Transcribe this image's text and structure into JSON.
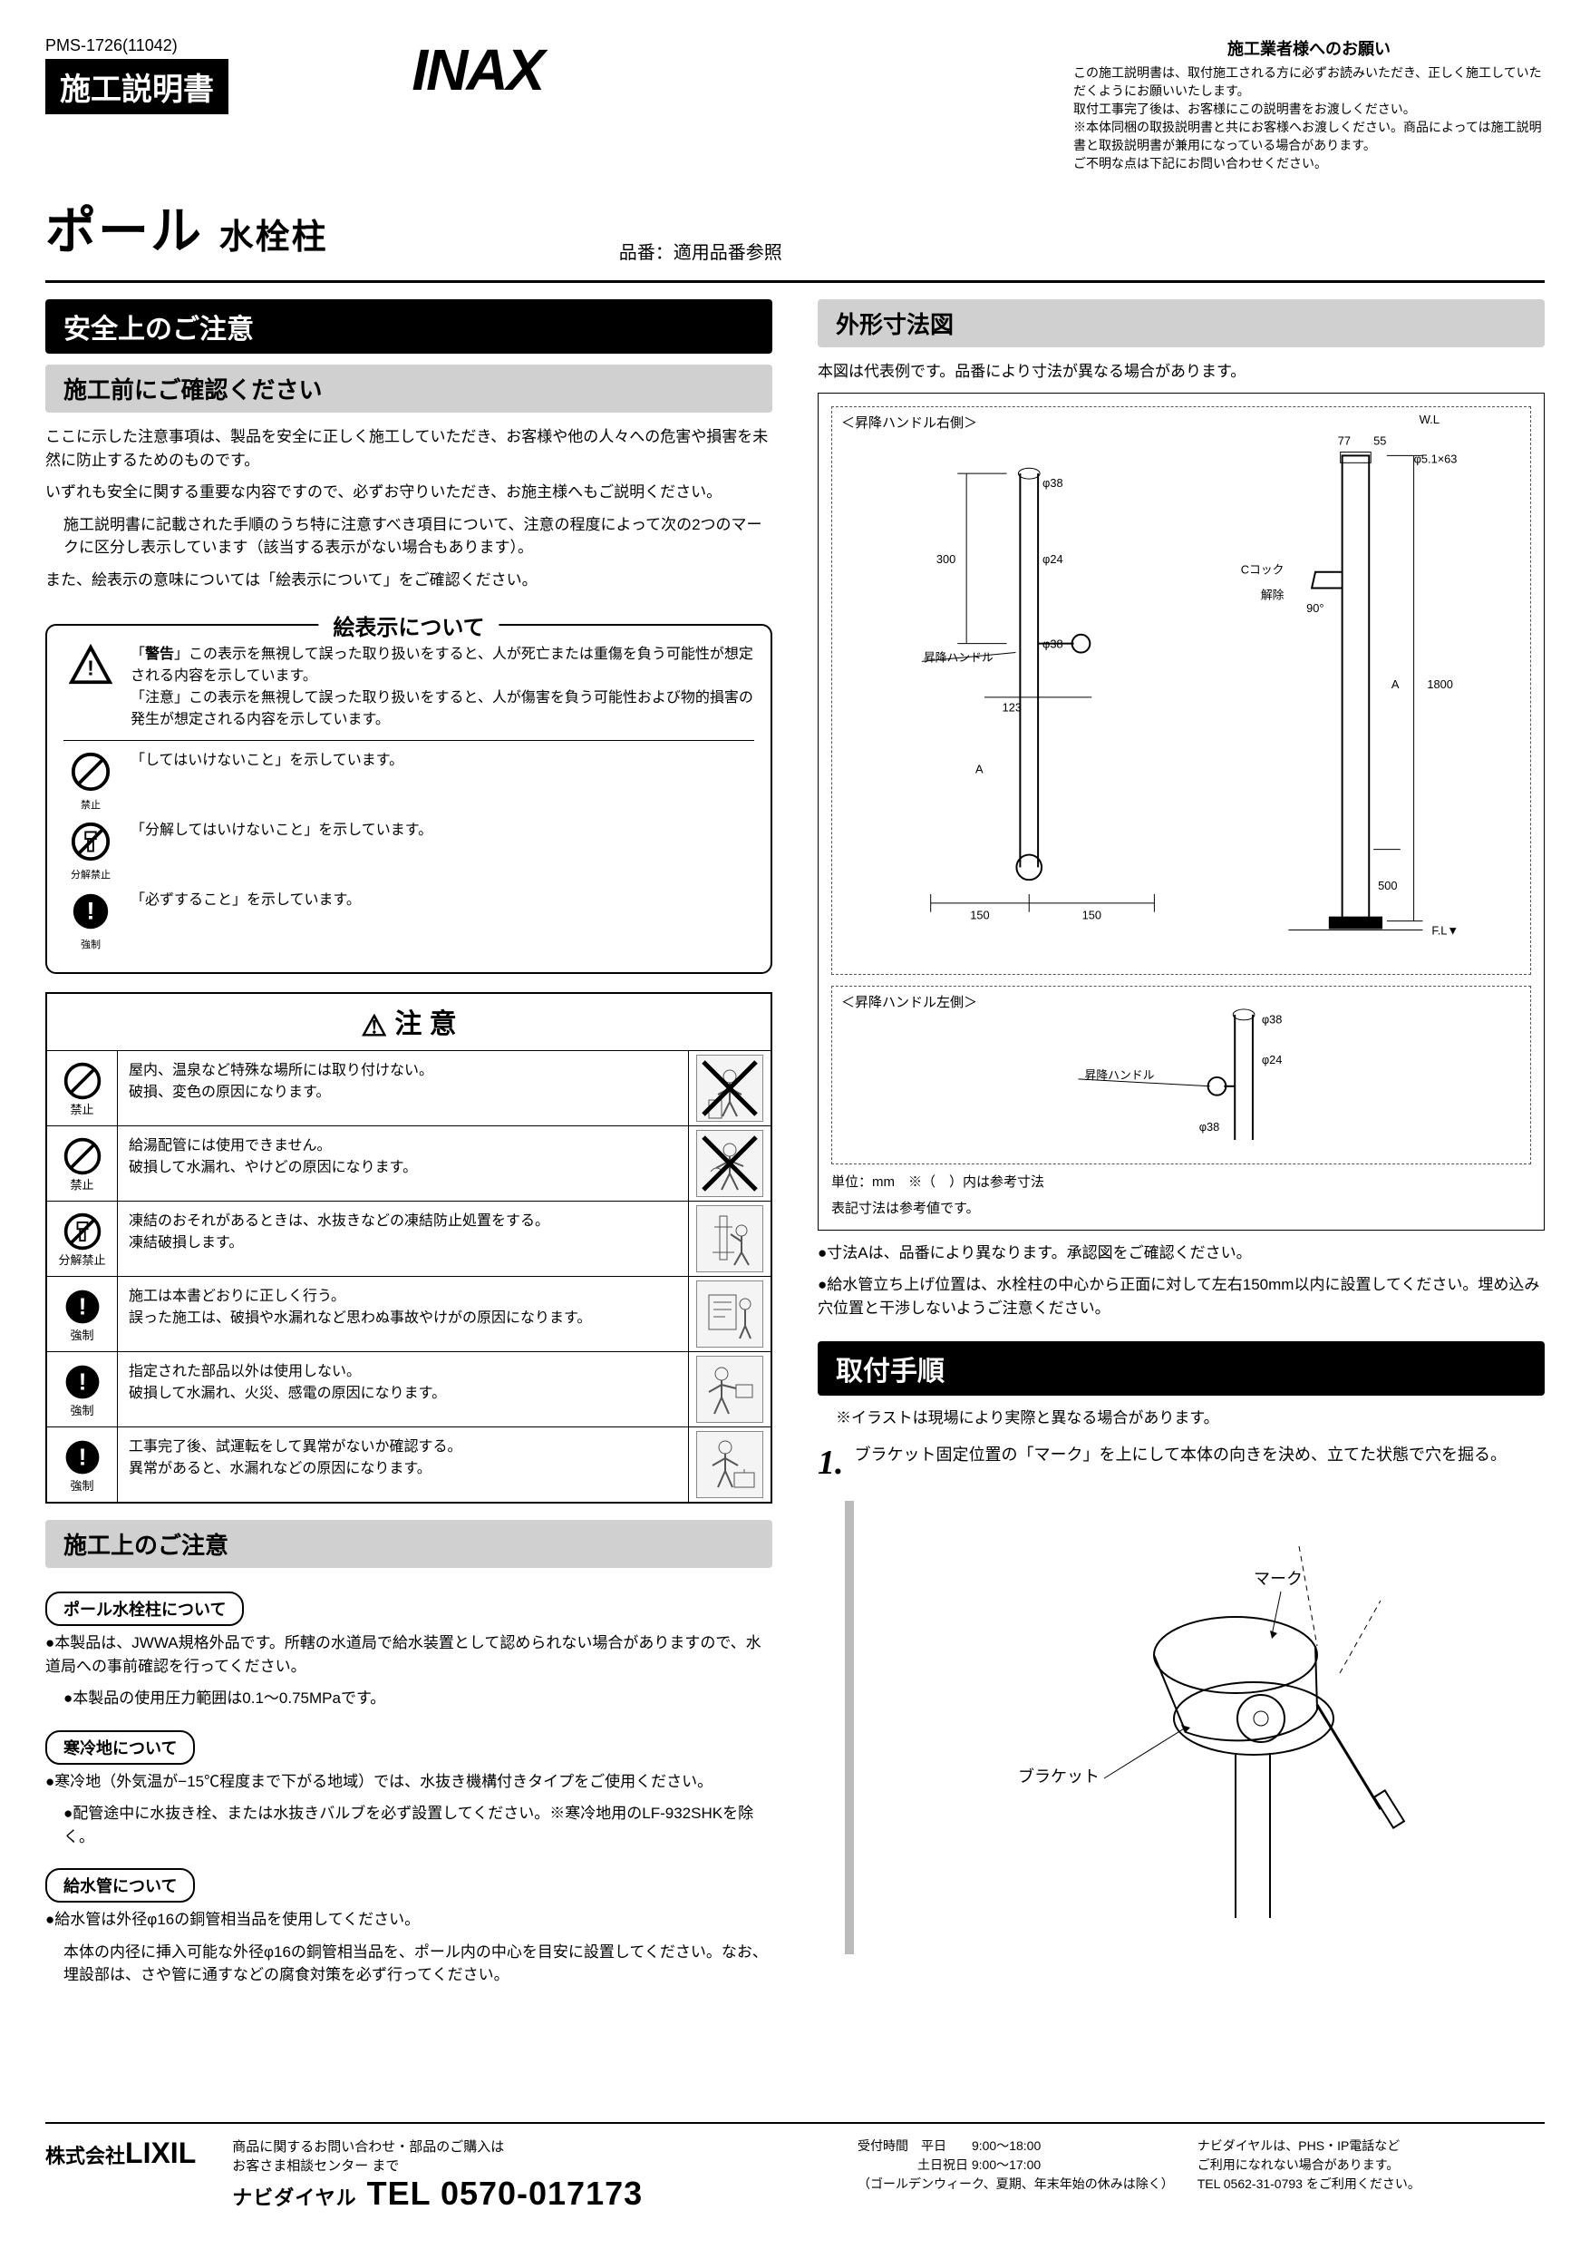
{
  "meta": {
    "pms": "PMS-1726(11042)",
    "doc_title": "施工説明書",
    "brand": "INAX",
    "product_name_main": "ポール",
    "product_name_sub": "水栓柱",
    "model_prefix": "品番：",
    "model": "適用品番参照"
  },
  "top_right": {
    "title": "施工業者様へのお願い",
    "line1": "この施工説明書は、取付施工される方に必ずお読みいただき、正しく施工していただくようにお願いいたします。",
    "line2": "取付工事完了後は、お客様にこの説明書をお渡しください。",
    "line3": "※本体同梱の取扱説明書と共にお客様へお渡しください。商品によっては施工説明書と取扱説明書が兼用になっている場合があります。",
    "line4": "ご不明な点は下記にお問い合わせください。"
  },
  "safety_section": {
    "header": "安全上のご注意",
    "sub_header": "施工前にご確認ください",
    "intro1": "ここに示した注意事項は、製品を安全に正しく施工していただき、お客様や他の人々への危害や損害を未然に防止するためのものです。",
    "intro2": "いずれも安全に関する重要な内容ですので、必ずお守りいただき、お施主様へもご説明ください。",
    "intro3": "施工説明書に記載された手順のうち特に注意すべき項目について、注意の程度によって次の2つのマークに区分し表示しています（該当する表示がない場合もあります）。",
    "intro4": "また、絵表示の意味については「絵表示について」をご確認ください。",
    "pict_title": "絵表示について",
    "def_warn_label": "警告",
    "def_warn_text": "この表示を無視して誤った取り扱いをすると、人が死亡または重傷を負う可能性が想定される内容を示しています。",
    "def_caution_text": "「注意」この表示を無視して誤った取り扱いをすると、人が傷害を負う可能性および物的損害の発生が想定される内容を示しています。",
    "prohibit_label": "禁止",
    "prohibit_text": "「してはいけないこと」を示しています。",
    "no_disassemble_label": "分解禁止",
    "no_disassemble_text": "「分解してはいけないこと」を示しています。",
    "mandatory_label": "強制",
    "mandatory_text": "「必ずすること」を示しています。"
  },
  "warning_table": {
    "header": "注 意",
    "rows": [
      {
        "icon": "prohibit",
        "icon_label": "禁止",
        "text": "屋内、温泉など特殊な場所には取り付けない。\n破損、変色の原因になります。",
        "cross": true
      },
      {
        "icon": "prohibit",
        "icon_label": "禁止",
        "text": "給湯配管には使用できません。\n破損して水漏れ、やけどの原因になります。",
        "cross": true
      },
      {
        "icon": "no_disassemble",
        "icon_label": "分解禁止",
        "text": "凍結のおそれがあるときは、水抜きなどの凍結防止処置をする。\n凍結破損します。",
        "cross": false
      },
      {
        "icon": "mandatory",
        "icon_label": "強制",
        "text": "施工は本書どおりに正しく行う。\n誤った施工は、破損や水漏れなど思わぬ事故やけがの原因になります。",
        "cross": false
      },
      {
        "icon": "mandatory",
        "icon_label": "強制",
        "text": "指定された部品以外は使用しない。\n破損して水漏れ、火災、感電の原因になります。",
        "cross": false
      },
      {
        "icon": "mandatory",
        "icon_label": "強制",
        "text": "工事完了後、試運転をして異常がないか確認する。\n異常があると、水漏れなどの原因になります。",
        "cross": false
      }
    ]
  },
  "install_notes": {
    "header": "施工上のご注意",
    "label1": "ポール水栓柱について",
    "text1a": "●本製品は、JWWA規格外品です。所轄の水道局で給水装置として認められない場合がありますので、水道局への事前確認を行ってください。",
    "text1b": "●本製品の使用圧力範囲は0.1〜0.75MPaです。",
    "label2": "寒冷地について",
    "text2a": "●寒冷地（外気温が−15℃程度まで下がる地域）では、水抜き機構付きタイプをご使用ください。",
    "text2b": "●配管途中に水抜き栓、または水抜きバルブを必ず設置してください。※寒冷地用のLF-932SHKを除く。",
    "label3": "給水管について",
    "text3a": "●給水管は外径φ16の銅管相当品を使用してください。",
    "text3b": "本体の内径に挿入可能な外径φ16の銅管相当品を、ポール内の中心を目安に設置してください。なお、埋設部は、さや管に通すなどの腐食対策を必ず行ってください。"
  },
  "dimensions": {
    "header": "外形寸法図",
    "note_top": "本図は代表例です。品番により寸法が異なる場合があります。",
    "diagram1_title": "＜昇降ハンドル右側＞",
    "diagram2_title": "＜昇降ハンドル左側＞",
    "labels": {
      "wl": "W.L",
      "fl": "F.L▼",
      "d38": "φ38",
      "d24": "φ24",
      "d38_2": "φ38",
      "c_cock": "Cコック",
      "freeze": "解除",
      "ninety": "90°",
      "handle": "昇降ハンドル",
      "dim_300": "300",
      "dim_77": "77",
      "dim_55": "55",
      "dim_hole": "φ5.1×63",
      "dim_123": "123",
      "dim_150a": "150",
      "dim_150b": "150",
      "dim_500": "500",
      "dim_1800": "1800",
      "dim_A": "A",
      "dim_A2": "A"
    },
    "bottom_note1": "単位：mm　※（　）内は参考寸法",
    "bottom_note2": "表記寸法は参考値です。",
    "after_note1": "●寸法Aは、品番により異なります。承認図をご確認ください。",
    "after_note2": "●給水管立ち上げ位置は、水栓柱の中心から正面に対して左右150mm以内に設置してください。埋め込み穴位置と干渉しないようご注意ください。"
  },
  "procedure": {
    "header": "取付手順",
    "intro": "※イラストは現場により実際と異なる場合があります。",
    "step1_num": "1.",
    "step1_text": "ブラケット固定位置の「マーク」を上にして本体の向きを決め、立てた状態で穴を掘る。",
    "fig_mark": "マーク",
    "fig_bracket": "ブラケット"
  },
  "footer": {
    "company_kk": "株式会社",
    "company": "LIXIL",
    "center_line1": "商品に関するお問い合わせ・部品のご購入は",
    "center_line2": "お客さま相談センター まで",
    "tel_prefix": "ナビダイヤル",
    "tel": "TEL 0570-017173",
    "hours_label": "受付時間",
    "hours1": "平日　　9:00〜18:00",
    "hours2": "土日祝日 9:00〜17:00",
    "hours_note": "（ゴールデンウィーク、夏期、年末年始の休みは除く）",
    "right1": "ナビダイヤルは、PHS・IP電話など",
    "right2": "ご利用になれない場合があります。",
    "right3": "TEL 0562-31-0793 をご利用ください。"
  },
  "colors": {
    "black": "#000000",
    "gray_bar": "#d0d0d0",
    "step_bar": "#bbbbbb",
    "dashed": "#555555"
  }
}
